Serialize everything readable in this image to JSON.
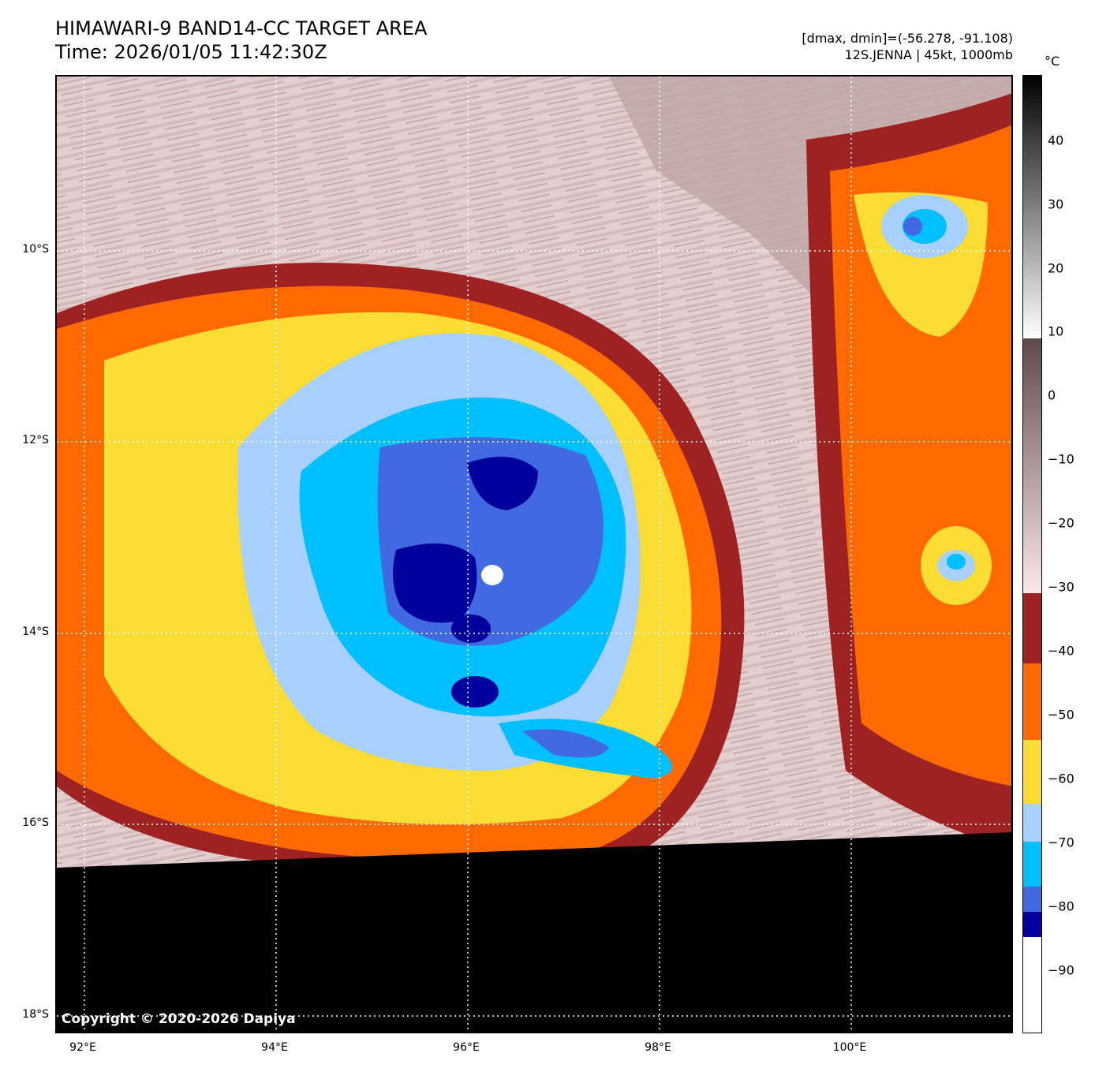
{
  "header": {
    "title_line1": "HIMAWARI-9 BAND14-CC TARGET AREA",
    "title_line2": "Time: 2026/01/05 11:42:30Z",
    "meta_line1": "[dmax, dmin]=(-56.278, -91.108)",
    "meta_line2": "12S.JENNA | 45kt, 1000mb"
  },
  "map": {
    "copyright": "Copyright © 2020-2026 Dapiya",
    "lat_labels": [
      "10°S",
      "12°S",
      "14°S",
      "16°S",
      "18°S"
    ],
    "lon_labels": [
      "92°E",
      "94°E",
      "96°E",
      "98°E",
      "100°E"
    ],
    "no_data_color": "#000000",
    "storm_center": {
      "lat": "13.4°S",
      "lon": "96.2°E"
    }
  },
  "colorbar": {
    "unit": "°C",
    "tick_labels": [
      "40",
      "30",
      "20",
      "10",
      "0",
      "−10",
      "−20",
      "−30",
      "−40",
      "−50",
      "−60",
      "−70",
      "−80",
      "−90"
    ],
    "range": [
      -100,
      50
    ],
    "color_bands": [
      {
        "from": 50,
        "to": 10,
        "colors": [
          "#000000",
          "#ffffff"
        ]
      },
      {
        "from": 10,
        "to": -30,
        "colors": [
          "#5f4a4a",
          "#fbe8e8"
        ]
      },
      {
        "from": -30,
        "to": -41,
        "color": "#9e2222"
      },
      {
        "from": -41,
        "to": -53,
        "color": "#ff6a00"
      },
      {
        "from": -53,
        "to": -63,
        "color": "#fadc32"
      },
      {
        "from": -63,
        "to": -69,
        "color": "#a7d0ff"
      },
      {
        "from": -69,
        "to": -76,
        "color": "#00bfff"
      },
      {
        "from": -76,
        "to": -80,
        "color": "#4169e1"
      },
      {
        "from": -80,
        "to": -84,
        "color": "#00009c"
      },
      {
        "from": -84,
        "to": -100,
        "color": "#ffffff"
      }
    ]
  }
}
